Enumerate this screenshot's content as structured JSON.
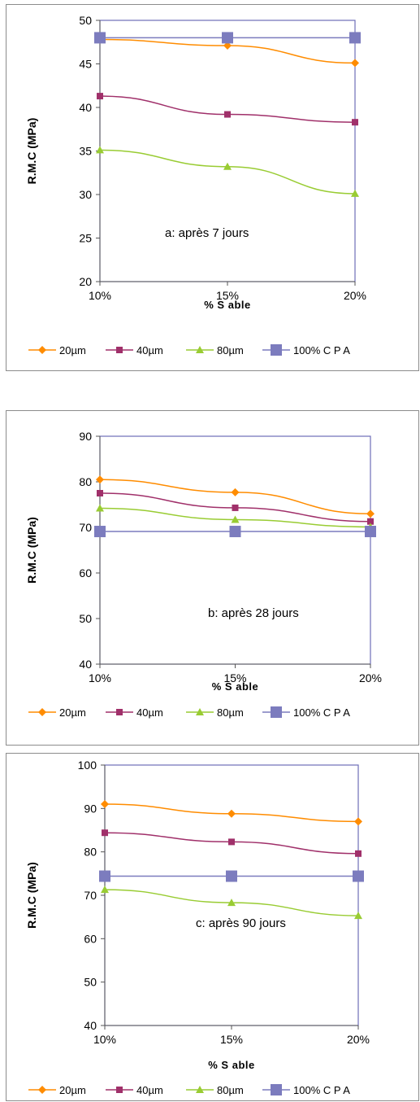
{
  "charts": [
    {
      "type": "line",
      "annotation": "a: après  7 jours",
      "xlabel": "% S able",
      "ylabel": "R.M.C  (MPa)",
      "categories": [
        "10%",
        "15%",
        "20%"
      ],
      "ylim": [
        20,
        50
      ],
      "yticks": [
        20,
        25,
        30,
        35,
        40,
        45,
        50
      ],
      "series": [
        {
          "name": "20µm",
          "color": "#ff8c00",
          "marker": "diamond",
          "values": [
            47.8,
            47.1,
            45.1
          ]
        },
        {
          "name": "40µm",
          "color": "#a0306a",
          "marker": "square",
          "values": [
            41.3,
            39.2,
            38.3
          ]
        },
        {
          "name": "80µm",
          "color": "#99cc33",
          "marker": "triangle",
          "values": [
            35.1,
            33.2,
            30.1
          ]
        },
        {
          "name": "100% C P A",
          "color": "#7c7cbe",
          "marker": "bigsquare",
          "values": [
            48,
            48,
            48
          ]
        }
      ]
    },
    {
      "type": "line",
      "annotation": "b: après  28 jours",
      "xlabel": "% S able",
      "ylabel": "R.M.C  (MPa)",
      "categories": [
        "10%",
        "15%",
        "20%"
      ],
      "ylim": [
        40,
        90
      ],
      "yticks": [
        40,
        50,
        60,
        70,
        80,
        90
      ],
      "series": [
        {
          "name": "20µm",
          "color": "#ff8c00",
          "marker": "diamond",
          "values": [
            80.5,
            77.7,
            73
          ]
        },
        {
          "name": "40µm",
          "color": "#a0306a",
          "marker": "square",
          "values": [
            77.5,
            74.3,
            71.3
          ]
        },
        {
          "name": "80µm",
          "color": "#99cc33",
          "marker": "triangle",
          "values": [
            74.2,
            71.7,
            70.1
          ]
        },
        {
          "name": "100% C P A",
          "color": "#7c7cbe",
          "marker": "bigsquare",
          "values": [
            69.1,
            69.1,
            69.1
          ]
        }
      ]
    },
    {
      "type": "line",
      "annotation": "c: après  90 jours",
      "xlabel": "% S able",
      "ylabel": "R.M.C  (MPa)",
      "categories": [
        "10%",
        "15%",
        "20%"
      ],
      "ylim": [
        40,
        100
      ],
      "yticks": [
        40,
        50,
        60,
        70,
        80,
        90,
        100
      ],
      "series": [
        {
          "name": "20µm",
          "color": "#ff8c00",
          "marker": "diamond",
          "values": [
            91,
            88.8,
            87
          ]
        },
        {
          "name": "40µm",
          "color": "#a0306a",
          "marker": "square",
          "values": [
            84.4,
            82.3,
            79.6
          ]
        },
        {
          "name": "80µm",
          "color": "#99cc33",
          "marker": "triangle",
          "values": [
            71.3,
            68.3,
            65.3
          ]
        },
        {
          "name": "100% C P A",
          "color": "#7c7cbe",
          "marker": "bigsquare",
          "values": [
            74.4,
            74.4,
            74.4
          ]
        }
      ]
    }
  ]
}
